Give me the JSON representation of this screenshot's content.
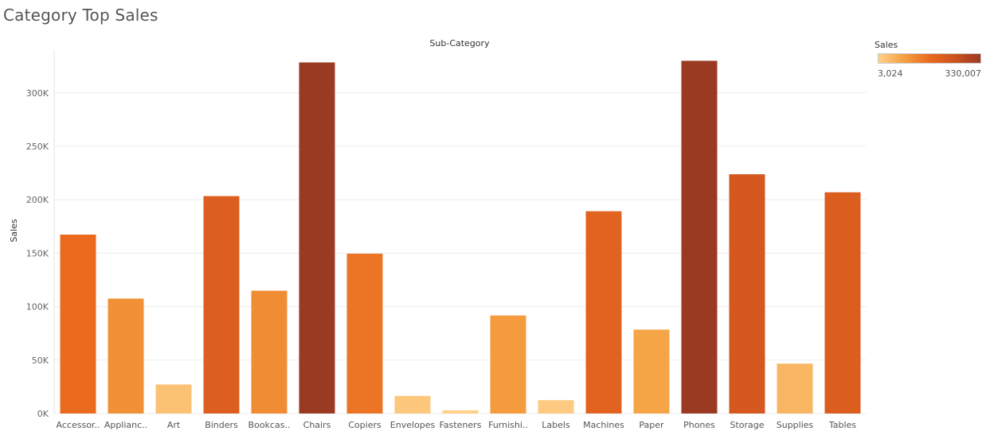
{
  "title": "Category Top Sales",
  "legend": {
    "title": "Sales",
    "min_label": "3,024",
    "max_label": "330,007",
    "min_value": 3024,
    "max_value": 330007,
    "colors": [
      "#ffd08a",
      "#f4a040",
      "#ea6a1e",
      "#cc5220",
      "#9a3a22"
    ]
  },
  "chart_data": {
    "type": "bar",
    "title": "",
    "xlabel": "Sub-Category",
    "ylabel": "Sales",
    "ylim": [
      0,
      340000
    ],
    "yticks": [
      0,
      50000,
      100000,
      150000,
      200000,
      250000,
      300000
    ],
    "ytick_labels": [
      "0K",
      "50K",
      "100K",
      "150K",
      "200K",
      "250K",
      "300K"
    ],
    "grid": true,
    "legend_position": "top-right",
    "categories": [
      "Accessor..",
      "Applianc..",
      "Art",
      "Binders",
      "Bookcas..",
      "Chairs",
      "Copiers",
      "Envelopes",
      "Fasteners",
      "Furnishi..",
      "Labels",
      "Machines",
      "Paper",
      "Phones",
      "Storage",
      "Supplies",
      "Tables"
    ],
    "values": [
      167380,
      107532,
      27119,
      203413,
      114880,
      328449,
      149528,
      16476,
      3024,
      91705,
      12486,
      189239,
      78479,
      330007,
      223844,
      46674,
      206966
    ]
  }
}
